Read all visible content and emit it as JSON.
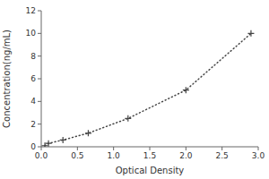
{
  "chart_data": {
    "type": "line",
    "xlabel": "Optical Density",
    "ylabel": "Concentration(ng/mL)",
    "x": [
      0.05,
      0.1,
      0.3,
      0.65,
      1.2,
      2.0,
      2.9
    ],
    "values": [
      0.1,
      0.3,
      0.6,
      1.2,
      2.5,
      5.0,
      10.0
    ],
    "color": "#444444",
    "marker": "plus",
    "line_style": "dotted",
    "xlim": [
      0,
      3
    ],
    "ylim": [
      0,
      12
    ],
    "xticks": [
      {
        "value": 0,
        "label": "0.0"
      },
      0.5,
      {
        "value": 1,
        "label": "1.0"
      },
      1.5,
      {
        "value": 2,
        "label": "2.0"
      },
      2.5,
      {
        "value": 3,
        "label": "3.0"
      }
    ],
    "yticks": [
      0,
      2,
      4,
      6,
      8,
      10,
      12
    ]
  }
}
